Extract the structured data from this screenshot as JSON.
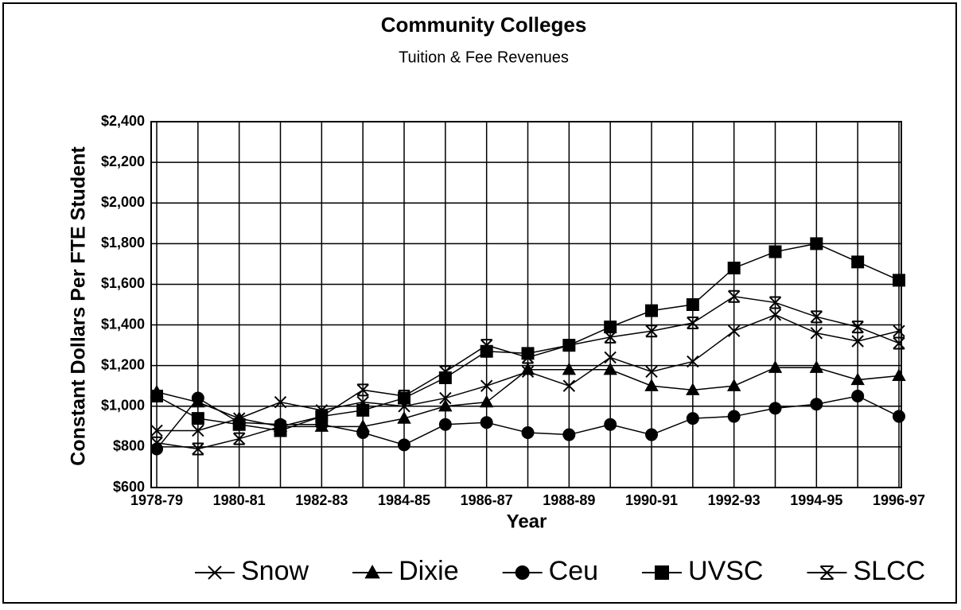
{
  "chart_data": {
    "type": "line",
    "title": "Community Colleges",
    "subtitle": "Tuition & Fee Revenues",
    "x_label": "Year",
    "y_label": "Constant Dollars Per FTE Student",
    "categories": [
      "1978-79",
      null,
      "1980-81",
      null,
      "1982-83",
      null,
      "1984-85",
      null,
      "1986-87",
      null,
      "1988-89",
      null,
      "1990-91",
      null,
      "1992-93",
      null,
      "1994-95",
      null,
      "1996-97"
    ],
    "series": [
      {
        "name": "Snow",
        "color": "#000000",
        "marker": "x",
        "values": [
          880,
          880,
          940,
          1020,
          980,
          1020,
          1000,
          1040,
          1100,
          1170,
          1100,
          1240,
          1170,
          1220,
          1370,
          1450,
          1360,
          1320,
          1370
        ]
      },
      {
        "name": "Dixie",
        "color": "#000000",
        "marker": "triangle",
        "values": [
          1070,
          1020,
          940,
          900,
          900,
          900,
          940,
          1000,
          1020,
          1180,
          1180,
          1180,
          1100,
          1080,
          1100,
          1190,
          1190,
          1130,
          1150
        ]
      },
      {
        "name": "Ceu",
        "color": "#000000",
        "marker": "circle",
        "values": [
          790,
          1040,
          920,
          910,
          910,
          870,
          810,
          910,
          920,
          870,
          860,
          910,
          860,
          940,
          950,
          990,
          1010,
          1050,
          950
        ]
      },
      {
        "name": "UVSC",
        "color": "#000000",
        "marker": "square",
        "values": [
          1050,
          940,
          910,
          880,
          950,
          980,
          1040,
          1140,
          1270,
          1260,
          1300,
          1390,
          1470,
          1500,
          1680,
          1760,
          1800,
          1710,
          1620
        ]
      },
      {
        "name": "SLCC",
        "color": "#000000",
        "marker": "hourglass",
        "values": [
          820,
          790,
          840,
          900,
          950,
          1080,
          1050,
          1170,
          1300,
          1240,
          1300,
          1340,
          1370,
          1410,
          1540,
          1510,
          1440,
          1390,
          1310
        ]
      }
    ],
    "ylim": [
      600,
      2400
    ],
    "yticks": [
      {
        "value": 600,
        "label": "$600"
      },
      {
        "value": 800,
        "label": "$800"
      },
      {
        "value": 1000,
        "label": "$1,000"
      },
      {
        "value": 1200,
        "label": "$1,200"
      },
      {
        "value": 1400,
        "label": "$1,400"
      },
      {
        "value": 1600,
        "label": "$1,600"
      },
      {
        "value": 1800,
        "label": "$1,800"
      },
      {
        "value": 2000,
        "label": "$2,000"
      },
      {
        "value": 2200,
        "label": "$2,200"
      },
      {
        "value": 2400,
        "label": "$2,400"
      }
    ],
    "grid": true,
    "legend": "bottom"
  }
}
